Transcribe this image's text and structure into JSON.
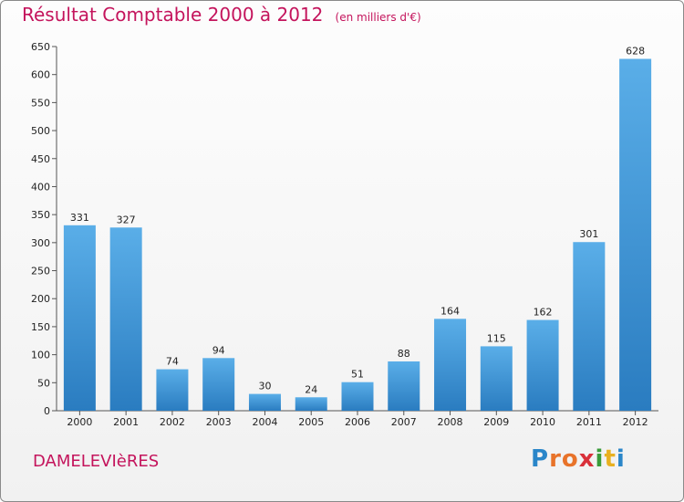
{
  "header": {
    "title": "Résultat Comptable 2000 à 2012",
    "unit": "(en milliers d'€)"
  },
  "footer": {
    "commune": "DAMELEVIèRES",
    "logo_letters": [
      "P",
      "r",
      "o",
      "x",
      "i",
      "t",
      "i"
    ],
    "logo_colors": [
      "#2a86c9",
      "#e8732a",
      "#e8732a",
      "#d9303a",
      "#3a9c3a",
      "#e8b020",
      "#2a86c9"
    ]
  },
  "chart_data": {
    "type": "bar",
    "title": "Résultat Comptable 2000 à 2012",
    "categories": [
      "2000",
      "2001",
      "2002",
      "2003",
      "2004",
      "2005",
      "2006",
      "2007",
      "2008",
      "2009",
      "2010",
      "2011",
      "2012"
    ],
    "values": [
      331,
      327,
      74,
      94,
      30,
      24,
      51,
      88,
      164,
      115,
      162,
      301,
      628
    ],
    "ylim": [
      0,
      650
    ],
    "yticks": [
      0,
      50,
      100,
      150,
      200,
      250,
      300,
      350,
      400,
      450,
      500,
      550,
      600,
      650
    ],
    "grid": false,
    "bar_color_top": "#5aaee8",
    "bar_color_bottom": "#2a7cc0"
  }
}
